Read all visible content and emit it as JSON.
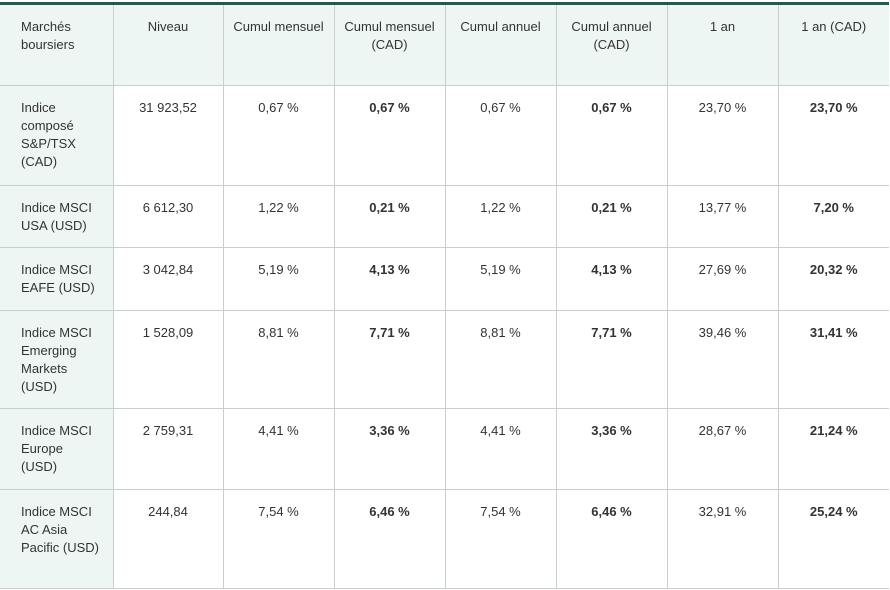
{
  "table": {
    "headers": [
      "Marchés boursiers",
      "Niveau",
      "Cumul mensuel",
      "Cumul mensuel (CAD)",
      "Cumul annuel",
      "Cumul annuel (CAD)",
      "1 an",
      "1 an (CAD)"
    ],
    "rows": [
      [
        "Indice composé S&P/TSX (CAD)",
        "31 923,52",
        "0,67 %",
        "0,67 %",
        "0,67 %",
        "0,67 %",
        "23,70 %",
        "23,70 %"
      ],
      [
        "Indice MSCI USA (USD)",
        "6 612,30",
        "1,22 %",
        "0,21 %",
        "1,22 %",
        "0,21 %",
        "13,77 %",
        "7,20 %"
      ],
      [
        "Indice MSCI EAFE (USD)",
        "3 042,84",
        "5,19 %",
        "4,13 %",
        "5,19 %",
        "4,13 %",
        "27,69 %",
        "20,32 %"
      ],
      [
        "Indice MSCI Emerging Markets (USD)",
        "1 528,09",
        "8,81 %",
        "7,71 %",
        "8,81 %",
        "7,71 %",
        "39,46 %",
        "31,41 %"
      ],
      [
        "Indice MSCI Europe (USD)",
        "2 759,31",
        "4,41 %",
        "3,36 %",
        "4,41 %",
        "3,36 %",
        "28,67 %",
        "21,24 %"
      ],
      [
        "Indice MSCI AC Asia Pacific (USD)",
        "244,84",
        "7,54 %",
        "6,46 %",
        "7,54 %",
        "6,46 %",
        "32,91 %",
        "25,24 %"
      ]
    ]
  }
}
